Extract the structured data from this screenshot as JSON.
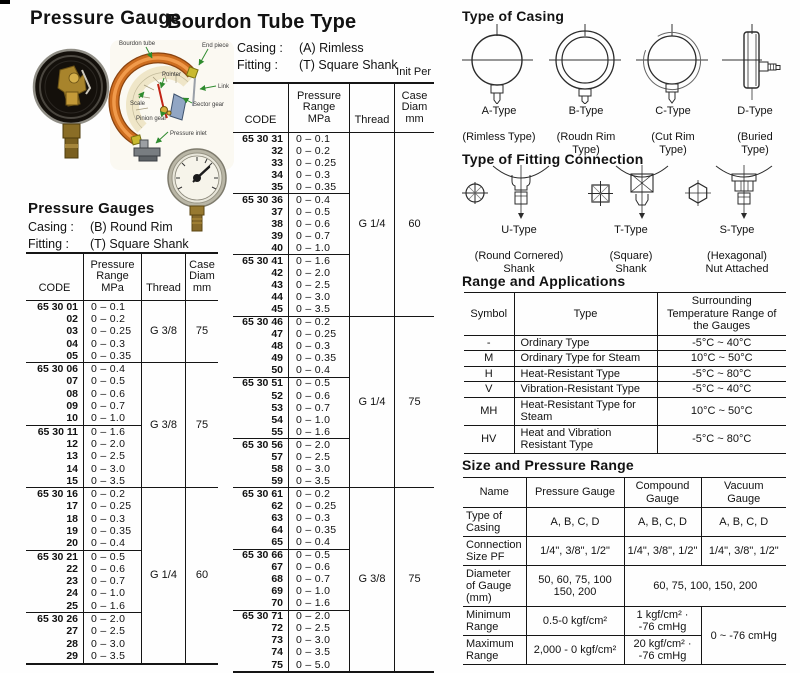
{
  "title": {
    "main": "Pressure Gauge",
    "sub": "Bourdon Tube Type"
  },
  "schematic": {
    "labels": {
      "bourdon_tube": "Bourdon tube",
      "end_piece": "End piece",
      "pointer": "Pointer",
      "link": "Link",
      "scale": "Scale",
      "sector_gear": "Sector gear",
      "pinion_gear": "Pinion gear",
      "pressure_inlet": "Pressure inlet"
    }
  },
  "left_panel": {
    "heading": "Pressure Gauges",
    "casing_label": "Casing :",
    "casing_value": "(B) Round Rim",
    "fitting_label": "Fitting :",
    "fitting_value": "(T) Square Shank",
    "table": {
      "headers": {
        "code": "CODE",
        "range": "Pressure\nRange\nMPa",
        "thread": "Thread",
        "diam": "Case\nDiam\nmm"
      },
      "groups": [
        {
          "thread": "G 3/8",
          "diam": "75",
          "blocks": [
            [
              [
                "65 30 01",
                "0 – 0.1"
              ],
              [
                "02",
                "0 – 0.2"
              ],
              [
                "03",
                "0 – 0.25"
              ],
              [
                "04",
                "0 – 0.3"
              ],
              [
                "05",
                "0 – 0.35"
              ]
            ]
          ]
        },
        {
          "thread": "G 3/8",
          "diam": "75",
          "blocks": [
            [
              [
                "65 30 06",
                "0 – 0.4"
              ],
              [
                "07",
                "0 – 0.5"
              ],
              [
                "08",
                "0 – 0.6"
              ],
              [
                "09",
                "0 – 0.7"
              ],
              [
                "10",
                "0 – 1.0"
              ]
            ],
            [
              [
                "65 30 11",
                "0 – 1.6"
              ],
              [
                "12",
                "0 – 2.0"
              ],
              [
                "13",
                "0 – 2.5"
              ],
              [
                "14",
                "0 – 3.0"
              ],
              [
                "15",
                "0 – 3.5"
              ]
            ]
          ]
        },
        {
          "thread": "G 1/4",
          "diam": "60",
          "blocks": [
            [
              [
                "65 30 16",
                "0 – 0.2"
              ],
              [
                "17",
                "0 – 0.25"
              ],
              [
                "18",
                "0 – 0.3"
              ],
              [
                "19",
                "0 – 0.35"
              ],
              [
                "20",
                "0 – 0.4"
              ]
            ],
            [
              [
                "65 30 21",
                "0 – 0.5"
              ],
              [
                "22",
                "0 – 0.6"
              ],
              [
                "23",
                "0 – 0.7"
              ],
              [
                "24",
                "0 – 1.0"
              ],
              [
                "25",
                "0 – 1.6"
              ]
            ],
            [
              [
                "65 30 26",
                "0 – 2.0"
              ],
              [
                "27",
                "0 – 2.5"
              ],
              [
                "28",
                "0 – 3.0"
              ],
              [
                "29",
                "0 – 3.5"
              ]
            ]
          ]
        }
      ]
    }
  },
  "mid_panel": {
    "casing_label": "Casing :",
    "casing_value": "(A) Rimless",
    "fitting_label": "Fitting :",
    "fitting_value": "(T) Square Shank",
    "unit_note": "Init Per",
    "table": {
      "headers": {
        "code": "CODE",
        "range": "Pressure\nRange\nMPa",
        "thread": "Thread",
        "diam": "Case\nDiam\nmm"
      },
      "groups": [
        {
          "thread": "G 1/4",
          "diam": "60",
          "blocks": [
            [
              [
                "65 30 31",
                "0 – 0.1"
              ],
              [
                "32",
                "0 – 0.2"
              ],
              [
                "33",
                "0 – 0.25"
              ],
              [
                "34",
                "0 – 0.3"
              ],
              [
                "35",
                "0 – 0.35"
              ]
            ],
            [
              [
                "65 30 36",
                "0 – 0.4"
              ],
              [
                "37",
                "0 – 0.5"
              ],
              [
                "38",
                "0 – 0.6"
              ],
              [
                "39",
                "0 – 0.7"
              ],
              [
                "40",
                "0 – 1.0"
              ]
            ],
            [
              [
                "65 30 41",
                "0 – 1.6"
              ],
              [
                "42",
                "0 – 2.0"
              ],
              [
                "43",
                "0 – 2.5"
              ],
              [
                "44",
                "0 – 3.0"
              ],
              [
                "45",
                "0 – 3.5"
              ]
            ]
          ]
        },
        {
          "thread": "G 1/4",
          "diam": "75",
          "blocks": [
            [
              [
                "65 30 46",
                "0 – 0.2"
              ],
              [
                "47",
                "0 – 0.25"
              ],
              [
                "48",
                "0 – 0.3"
              ],
              [
                "49",
                "0 – 0.35"
              ],
              [
                "50",
                "0 – 0.4"
              ]
            ],
            [
              [
                "65 30 51",
                "0 – 0.5"
              ],
              [
                "52",
                "0 – 0.6"
              ],
              [
                "53",
                "0 – 0.7"
              ],
              [
                "54",
                "0 – 1.0"
              ],
              [
                "55",
                "0 – 1.6"
              ]
            ],
            [
              [
                "65 30 56",
                "0 – 2.0"
              ],
              [
                "57",
                "0 – 2.5"
              ],
              [
                "58",
                "0 – 3.0"
              ],
              [
                "59",
                "0 – 3.5"
              ]
            ]
          ]
        },
        {
          "thread": "G 3/8",
          "diam": "75",
          "blocks": [
            [
              [
                "65 30 61",
                "0 – 0.2"
              ],
              [
                "62",
                "0 – 0.25"
              ],
              [
                "63",
                "0 – 0.3"
              ],
              [
                "64",
                "0 – 0.35"
              ],
              [
                "65",
                "0 – 0.4"
              ]
            ],
            [
              [
                "65 30 66",
                "0 – 0.5"
              ],
              [
                "67",
                "0 – 0.6"
              ],
              [
                "68",
                "0 – 0.7"
              ],
              [
                "69",
                "0 – 1.0"
              ],
              [
                "70",
                "0 – 1.6"
              ]
            ],
            [
              [
                "65 30 71",
                "0 – 2.0"
              ],
              [
                "72",
                "0 – 2.5"
              ],
              [
                "73",
                "0 – 3.0"
              ],
              [
                "74",
                "0 – 3.5"
              ],
              [
                "75",
                "0 – 5.0"
              ]
            ]
          ]
        }
      ]
    }
  },
  "casing_types": {
    "heading": "Type of Casing",
    "items": [
      {
        "name": "A-Type",
        "desc": "(Rimless Type)"
      },
      {
        "name": "B-Type",
        "desc": "(Roudn Rim\nType)"
      },
      {
        "name": "C-Type",
        "desc": "(Cut Rim\nType)"
      },
      {
        "name": "D-Type",
        "desc": "(Buried\nType)"
      }
    ]
  },
  "fitting_types": {
    "heading": "Type of Fitting Connection",
    "items": [
      {
        "name": "U-Type",
        "desc": "(Round Cornered)\nShank"
      },
      {
        "name": "T-Type",
        "desc": "(Square)\nShank"
      },
      {
        "name": "S-Type",
        "desc": "(Hexagonal)\nNut Attached"
      }
    ]
  },
  "range_applications": {
    "heading": "Range and Applications",
    "headers": [
      "Symbol",
      "Type",
      "Surrounding\nTemperature Range of\nthe Gauges"
    ],
    "rows": [
      [
        "-",
        "Ordinary Type",
        "-5°C ~ 40°C"
      ],
      [
        "M",
        "Ordinary Type for Steam",
        "10°C ~ 50°C"
      ],
      [
        "H",
        "Heat-Resistant Type",
        "-5°C ~ 80°C"
      ],
      [
        "V",
        "Vibration-Resistant Type",
        "-5°C ~ 40°C"
      ],
      [
        "MH",
        "Heat-Resistant Type for\nSteam",
        "10°C ~ 50°C"
      ],
      [
        "HV",
        "Heat and Vibration\nResistant Type",
        "-5°C ~ 80°C"
      ]
    ]
  },
  "size_pressure": {
    "heading": "Size and Pressure Range",
    "headers": [
      "Name",
      "Pressure Gauge",
      "Compound\nGauge",
      "Vacuum\nGauge"
    ],
    "row_type_casing": {
      "name": "Type of\nCasing",
      "pressure": "A, B, C, D",
      "compound": "A, B, C, D",
      "vacuum": "A, B, C, D"
    },
    "row_connection": {
      "name": "Connection\nSize PF",
      "pressure": "1/4\", 3/8\", 1/2\"",
      "compound": "1/4\", 3/8\", 1/2\"",
      "vacuum": "1/4\", 3/8\", 1/2\""
    },
    "row_diameter": {
      "name": "Diameter\nof Gauge\n(mm)",
      "pressure": "50,  60,  75, 100\n150, 200",
      "merged": "60, 75, 100, 150, 200"
    },
    "row_min": {
      "name": "Minimum\nRange",
      "pressure": "0.5-0 kgf/cm²",
      "compound": "1 kgf/cm² ·\n-76 cmHg",
      "vacuum_span": "0 ~ -76 cmHg"
    },
    "row_max": {
      "name": "Maximum\nRange",
      "pressure": "2,000 - 0 kgf/cm²",
      "compound": "20 kgf/cm² ·\n-76 cmHg"
    }
  }
}
